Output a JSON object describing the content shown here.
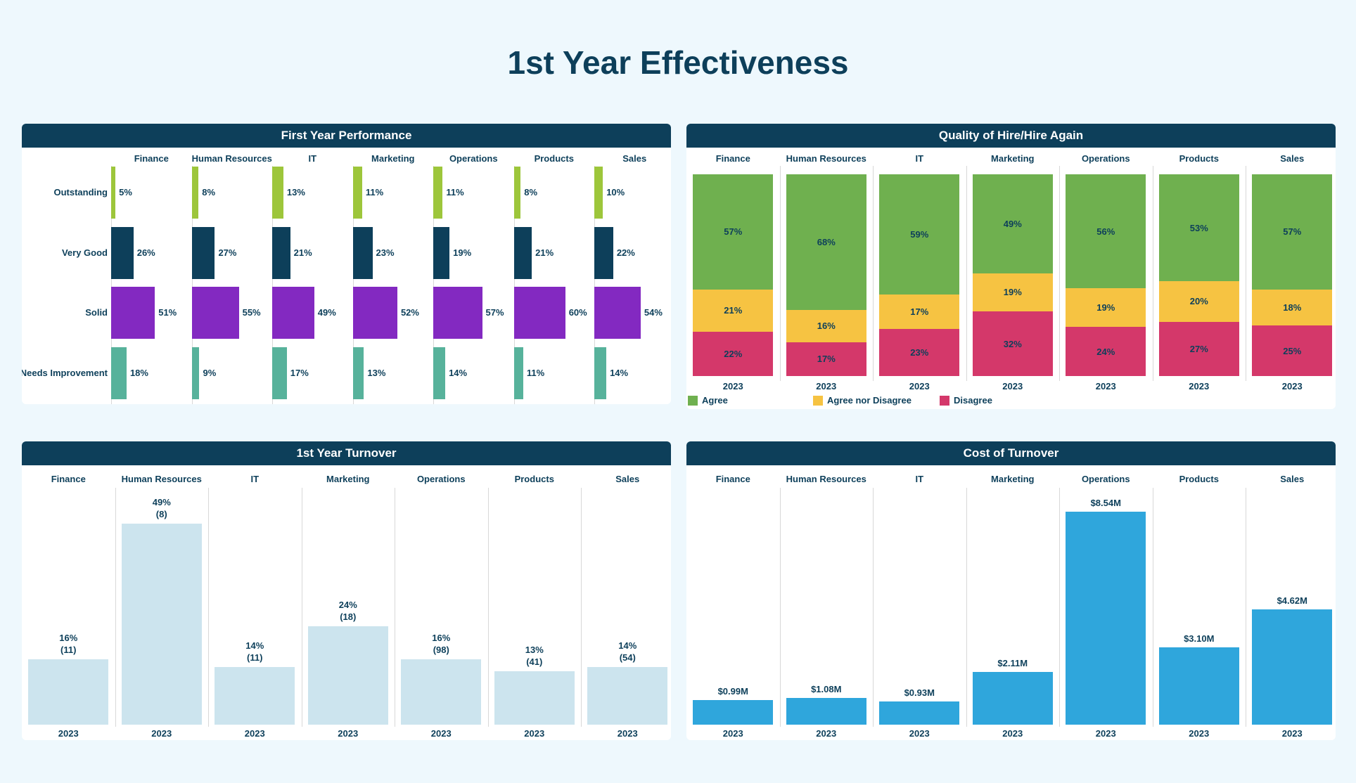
{
  "title": "1st Year Effectiveness",
  "departments": [
    "Finance",
    "Human Resources",
    "IT",
    "Marketing",
    "Operations",
    "Products",
    "Sales"
  ],
  "year": "2023",
  "chart_data": [
    {
      "type": "bar",
      "title": "First Year Performance",
      "orientation": "horizontal",
      "categories": [
        "Outstanding",
        "Very Good",
        "Solid",
        "Needs Improvement"
      ],
      "colors": [
        "#9dc63b",
        "#0d3f5a",
        "#8329c1",
        "#57b29b"
      ],
      "series": [
        {
          "name": "Finance",
          "values": [
            5,
            26,
            51,
            18
          ]
        },
        {
          "name": "Human Resources",
          "values": [
            8,
            27,
            55,
            9
          ]
        },
        {
          "name": "IT",
          "values": [
            13,
            21,
            49,
            17
          ]
        },
        {
          "name": "Marketing",
          "values": [
            11,
            23,
            52,
            13
          ]
        },
        {
          "name": "Operations",
          "values": [
            11,
            19,
            57,
            14
          ]
        },
        {
          "name": "Products",
          "values": [
            8,
            21,
            60,
            11
          ]
        },
        {
          "name": "Sales",
          "values": [
            10,
            22,
            54,
            14
          ]
        }
      ]
    },
    {
      "type": "bar",
      "stacked": true,
      "title": "Quality of Hire/Hire Again",
      "legend": [
        "Agree",
        "Agree nor Disagree",
        "Disagree"
      ],
      "legend_position": "bottom-left",
      "colors": [
        "#6fb04f",
        "#f6c342",
        "#d4386a"
      ],
      "categories": [
        "Finance",
        "Human Resources",
        "IT",
        "Marketing",
        "Operations",
        "Products",
        "Sales"
      ],
      "series": [
        {
          "name": "Agree",
          "values": [
            57,
            68,
            59,
            49,
            56,
            53,
            57
          ]
        },
        {
          "name": "Agree nor Disagree",
          "values": [
            21,
            16,
            17,
            19,
            19,
            20,
            18
          ]
        },
        {
          "name": "Disagree",
          "values": [
            22,
            17,
            23,
            32,
            24,
            27,
            25
          ]
        }
      ]
    },
    {
      "type": "bar",
      "title": "1st Year Turnover",
      "color": "#cce4ee",
      "categories": [
        "Finance",
        "Human Resources",
        "IT",
        "Marketing",
        "Operations",
        "Products",
        "Sales"
      ],
      "values": [
        16,
        49,
        14,
        24,
        16,
        13,
        14
      ],
      "counts": [
        11,
        8,
        11,
        18,
        98,
        41,
        54
      ],
      "labels": [
        "16%",
        "49%",
        "14%",
        "24%",
        "16%",
        "13%",
        "14%"
      ],
      "count_labels": [
        "(11)",
        "(8)",
        "(11)",
        "(18)",
        "(98)",
        "(41)",
        "(54)"
      ]
    },
    {
      "type": "bar",
      "title": "Cost of Turnover",
      "color": "#2fa6dc",
      "categories": [
        "Finance",
        "Human Resources",
        "IT",
        "Marketing",
        "Operations",
        "Products",
        "Sales"
      ],
      "values": [
        0.99,
        1.08,
        0.93,
        2.11,
        8.54,
        3.1,
        4.62
      ],
      "labels": [
        "$0.99M",
        "$1.08M",
        "$0.93M",
        "$2.11M",
        "$8.54M",
        "$3.10M",
        "$4.62M"
      ]
    }
  ]
}
